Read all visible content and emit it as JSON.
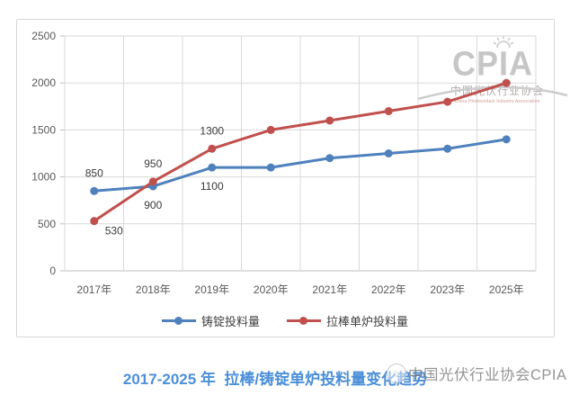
{
  "chart_data": {
    "type": "line",
    "categories": [
      "2017年",
      "2018年",
      "2019年",
      "2020年",
      "2021年",
      "2022年",
      "2023年",
      "2025年"
    ],
    "series": [
      {
        "name": "铸锭投料量",
        "color": "#4F81BD",
        "values": [
          850,
          900,
          1100,
          1100,
          1200,
          1250,
          1300,
          1400
        ],
        "labels": [
          {
            "index": 0,
            "text": "850",
            "placement": "above"
          },
          {
            "index": 1,
            "text": "900",
            "placement": "below"
          },
          {
            "index": 2,
            "text": "1100",
            "placement": "below"
          }
        ]
      },
      {
        "name": "拉棒单炉投料量",
        "color": "#C0504D",
        "values": [
          530,
          950,
          1300,
          1500,
          1600,
          1700,
          1800,
          2000
        ],
        "labels": [
          {
            "index": 0,
            "text": "530",
            "placement": "below-right"
          },
          {
            "index": 1,
            "text": "950",
            "placement": "above"
          },
          {
            "index": 2,
            "text": "1300",
            "placement": "above"
          }
        ]
      }
    ],
    "ylim": [
      0,
      2500
    ],
    "yticks": [
      0,
      500,
      1000,
      1500,
      2000,
      2500
    ],
    "grid": "both",
    "legend_position": "bottom",
    "title": "2017-2025 年  拉棒/铸锭单炉投料量变化趋势"
  },
  "caption": {
    "text": "2017-2025 年  拉棒/铸锭单炉投料量变化趋势",
    "color": "#4B8FD9"
  },
  "watermark": {
    "logo_acronym": "CPIA",
    "logo_cn": "中国光伏行业协会",
    "logo_en": "China Photovoltaic Industry Association",
    "footer_circle_glyph": "☼",
    "footer_text": "中国光伏行业协会CPIA"
  },
  "colors": {
    "grid": "#D9D9D9",
    "axis": "#BFBFBF",
    "tick_label": "#595959",
    "data_label": "#3A3A3A"
  }
}
